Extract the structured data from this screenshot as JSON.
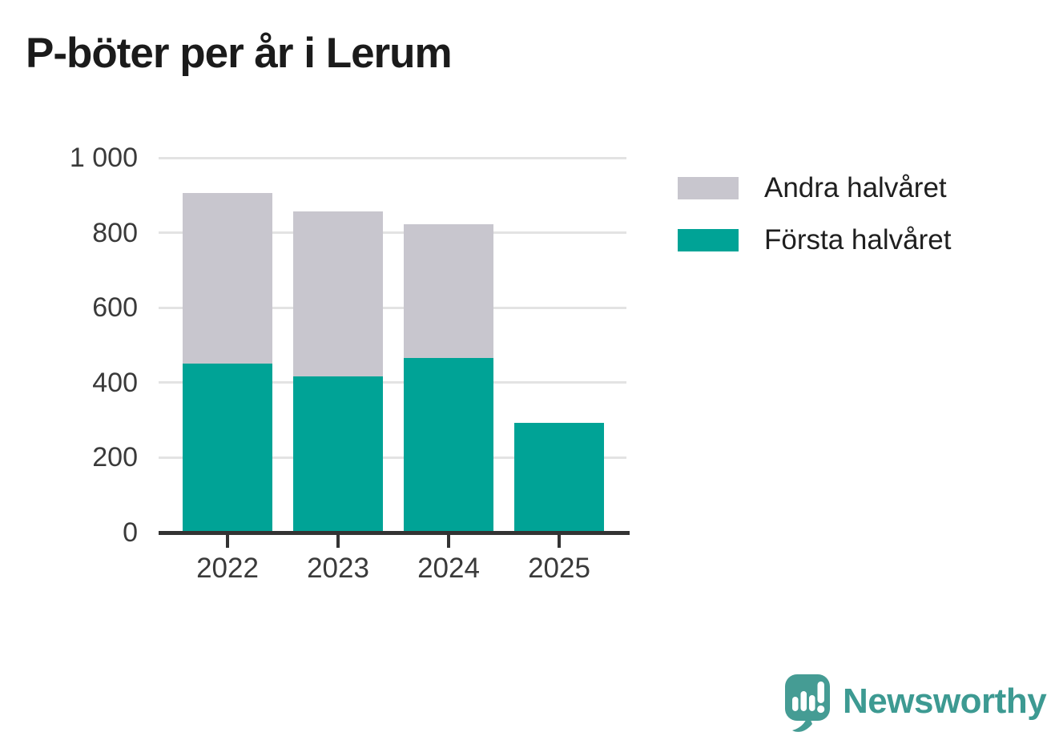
{
  "title": "P-böter per år i Lerum",
  "chart_data": {
    "type": "bar",
    "stacked": true,
    "title": "P-böter per år i Lerum",
    "categories": [
      "2022",
      "2023",
      "2024",
      "2025"
    ],
    "series": [
      {
        "name": "Första halvåret",
        "color": "#00a396",
        "values": [
          450,
          416,
          465,
          293
        ]
      },
      {
        "name": "Andra halvåret",
        "color": "#c8c6ce",
        "values": [
          455,
          441,
          357,
          null
        ]
      }
    ],
    "totals": [
      905,
      857,
      822,
      293
    ],
    "xlabel": "",
    "ylabel": "",
    "ylim": [
      0,
      1000
    ],
    "yticks": [
      {
        "value": 0,
        "label": "0"
      },
      {
        "value": 200,
        "label": "200"
      },
      {
        "value": 400,
        "label": "400"
      },
      {
        "value": 600,
        "label": "600"
      },
      {
        "value": 800,
        "label": "800"
      },
      {
        "value": 1000,
        "label": "1 000"
      }
    ],
    "grid": true,
    "legend_position": "right"
  },
  "legend": {
    "items": [
      {
        "label": "Andra halvåret",
        "color": "#c8c6ce"
      },
      {
        "label": "Första halvåret",
        "color": "#00a396"
      }
    ]
  },
  "footer": {
    "brand": "Newsworthy",
    "logo_icon": "speech-bubble-bar-chart-icon"
  },
  "colors": {
    "first_half": "#00a396",
    "second_half": "#c8c6ce",
    "axis": "#333333",
    "gridline": "#e3e3e3",
    "brand_teal": "#459c94",
    "title_text": "#1b1b1b"
  }
}
